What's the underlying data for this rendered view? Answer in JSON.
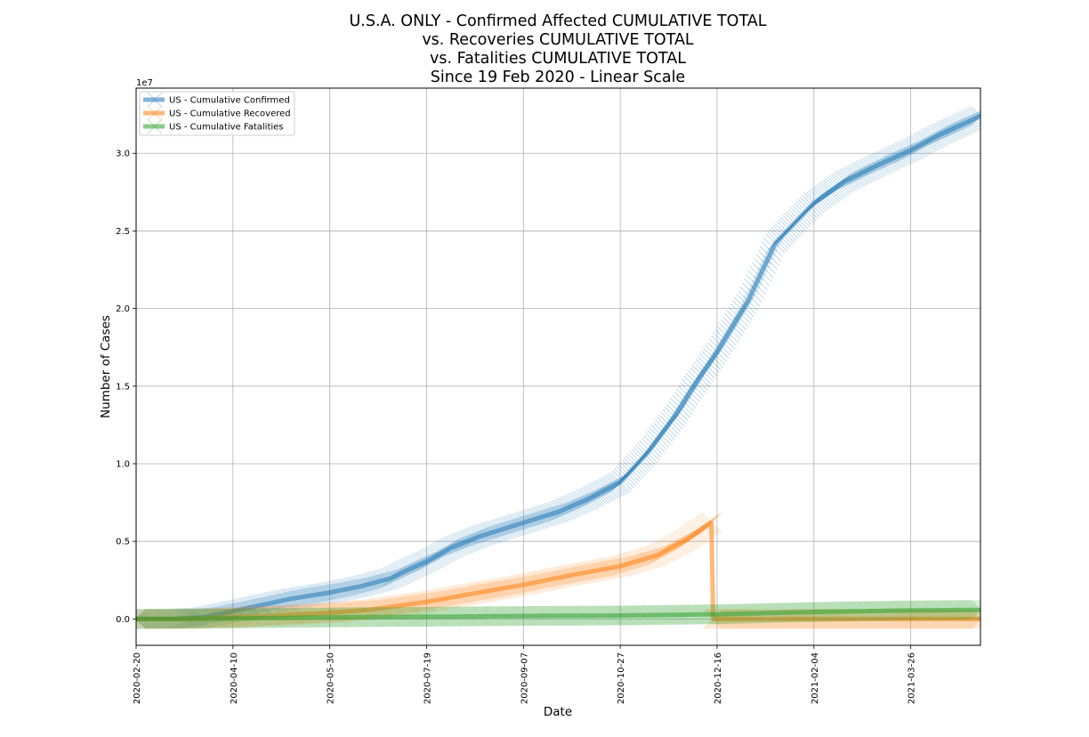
{
  "title_lines": [
    "U.S.A. ONLY - Confirmed Affected CUMULATIVE TOTAL",
    "vs. Recoveries CUMULATIVE TOTAL",
    "vs. Fatalities CUMULATIVE TOTAL",
    "Since 19 Feb 2020 - Linear Scale"
  ],
  "chart_data": {
    "type": "line",
    "xlabel": "Date",
    "ylabel": "Number of Cases",
    "y_offset_label": "1e7",
    "x_ticks": [
      "2020-02-20",
      "2020-04-10",
      "2020-05-30",
      "2020-07-19",
      "2020-09-07",
      "2020-10-27",
      "2020-12-16",
      "2021-02-04",
      "2021-03-26"
    ],
    "y_ticks": [
      0.0,
      0.5,
      1.0,
      1.5,
      2.0,
      2.5,
      3.0
    ],
    "y_tick_labels": [
      "0.0",
      "0.5",
      "1.0",
      "1.5",
      "2.0",
      "2.5",
      "3.0"
    ],
    "xlim": [
      "2020-02-20",
      "2021-05-01"
    ],
    "ylim": [
      -0.17,
      3.42
    ],
    "y_unit_multiplier": 10000000,
    "grid": true,
    "legend_position": "top-left",
    "marker": "x",
    "series": [
      {
        "name": "US - Cumulative Confirmed",
        "color": "#1f77b4",
        "points": [
          [
            "2020-02-20",
            0.0
          ],
          [
            "2020-03-10",
            0.0
          ],
          [
            "2020-03-25",
            0.01
          ],
          [
            "2020-04-10",
            0.05
          ],
          [
            "2020-04-25",
            0.09
          ],
          [
            "2020-05-10",
            0.13
          ],
          [
            "2020-05-30",
            0.17
          ],
          [
            "2020-06-15",
            0.21
          ],
          [
            "2020-06-30",
            0.26
          ],
          [
            "2020-07-10",
            0.32
          ],
          [
            "2020-07-19",
            0.37
          ],
          [
            "2020-08-01",
            0.46
          ],
          [
            "2020-08-15",
            0.53
          ],
          [
            "2020-09-07",
            0.62
          ],
          [
            "2020-09-25",
            0.69
          ],
          [
            "2020-10-10",
            0.77
          ],
          [
            "2020-10-27",
            0.88
          ],
          [
            "2020-11-10",
            1.07
          ],
          [
            "2020-11-25",
            1.32
          ],
          [
            "2020-12-05",
            1.52
          ],
          [
            "2020-12-16",
            1.72
          ],
          [
            "2021-01-01",
            2.05
          ],
          [
            "2021-01-15",
            2.42
          ],
          [
            "2021-02-04",
            2.68
          ],
          [
            "2021-02-20",
            2.82
          ],
          [
            "2021-03-10",
            2.93
          ],
          [
            "2021-03-26",
            3.02
          ],
          [
            "2021-04-10",
            3.12
          ],
          [
            "2021-05-01",
            3.24
          ]
        ]
      },
      {
        "name": "US - Cumulative Recovered",
        "color": "#ff7f0e",
        "points": [
          [
            "2020-02-20",
            0.0
          ],
          [
            "2020-03-20",
            0.0
          ],
          [
            "2020-04-10",
            0.01
          ],
          [
            "2020-05-01",
            0.02
          ],
          [
            "2020-05-30",
            0.04
          ],
          [
            "2020-06-20",
            0.06
          ],
          [
            "2020-07-19",
            0.11
          ],
          [
            "2020-08-15",
            0.17
          ],
          [
            "2020-09-07",
            0.22
          ],
          [
            "2020-10-01",
            0.28
          ],
          [
            "2020-10-27",
            0.34
          ],
          [
            "2020-11-15",
            0.41
          ],
          [
            "2020-11-30",
            0.51
          ],
          [
            "2020-12-13",
            0.62
          ],
          [
            "2020-12-14",
            0.0
          ],
          [
            "2021-05-01",
            0.0
          ]
        ]
      },
      {
        "name": "US - Cumulative Fatalities",
        "color": "#2ca02c",
        "points": [
          [
            "2020-02-20",
            0.0
          ],
          [
            "2020-04-10",
            0.003
          ],
          [
            "2020-05-30",
            0.01
          ],
          [
            "2020-07-19",
            0.014
          ],
          [
            "2020-09-07",
            0.019
          ],
          [
            "2020-10-27",
            0.022
          ],
          [
            "2020-12-16",
            0.03
          ],
          [
            "2021-02-04",
            0.045
          ],
          [
            "2021-03-26",
            0.055
          ],
          [
            "2021-05-01",
            0.058
          ]
        ]
      }
    ]
  }
}
